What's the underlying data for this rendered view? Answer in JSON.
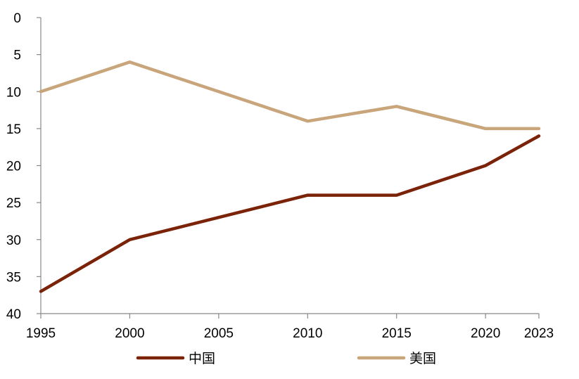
{
  "chart_data": {
    "type": "line",
    "title": "",
    "xlabel": "",
    "ylabel": "",
    "x": [
      1995,
      2000,
      2005,
      2010,
      2015,
      2020,
      2023
    ],
    "x_ticks": [
      "1995",
      "2000",
      "2005",
      "2010",
      "2015",
      "2020",
      "2023"
    ],
    "y_ticks": [
      "0",
      "5",
      "10",
      "15",
      "20",
      "25",
      "30",
      "35",
      "40"
    ],
    "ylim": [
      0,
      40
    ],
    "y_inverted": true,
    "grid": false,
    "legend_position": "bottom",
    "series": [
      {
        "name": "中国",
        "color": "#7b2308",
        "values": [
          37,
          30,
          27,
          24,
          24,
          20,
          16
        ]
      },
      {
        "name": "美国",
        "color": "#c8a57a",
        "values": [
          10,
          6,
          10,
          14,
          12,
          15,
          15
        ]
      }
    ]
  }
}
